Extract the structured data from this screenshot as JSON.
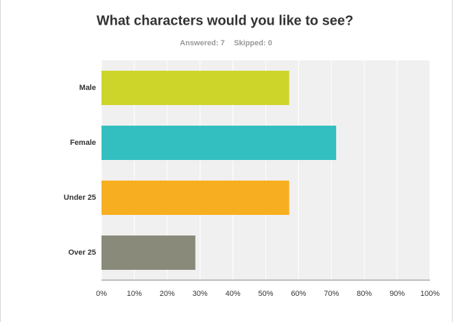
{
  "chart_data": {
    "type": "bar",
    "orientation": "horizontal",
    "title": "What characters would you like to see?",
    "answered": "Answered: 7",
    "skipped": "Skipped: 0",
    "categories": [
      "Male",
      "Female",
      "Under 25",
      "Over 25"
    ],
    "values": [
      57.14,
      71.43,
      57.14,
      28.57
    ],
    "colors": [
      "#ced52a",
      "#33bfbf",
      "#f7ae20",
      "#898a7a"
    ],
    "xlim": [
      0,
      100
    ],
    "xticks": [
      {
        "value": 0,
        "label": "0%"
      },
      {
        "value": 10,
        "label": "10%"
      },
      {
        "value": 20,
        "label": "20%"
      },
      {
        "value": 30,
        "label": "30%"
      },
      {
        "value": 40,
        "label": "40%"
      },
      {
        "value": 50,
        "label": "50%"
      },
      {
        "value": 60,
        "label": "60%"
      },
      {
        "value": 70,
        "label": "70%"
      },
      {
        "value": 80,
        "label": "80%"
      },
      {
        "value": 90,
        "label": "90%"
      },
      {
        "value": 100,
        "label": "100%"
      }
    ],
    "grid": true
  }
}
